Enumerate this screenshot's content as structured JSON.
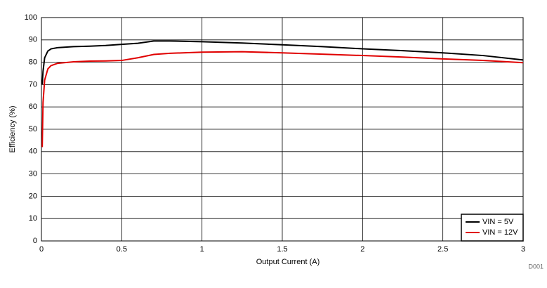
{
  "chart_data": {
    "type": "line",
    "xlabel": "Output Current (A)",
    "ylabel": "Efficiency (%)",
    "note": "D001",
    "x": [
      0.005,
      0.01,
      0.02,
      0.04,
      0.06,
      0.1,
      0.2,
      0.3,
      0.4,
      0.5,
      0.6,
      0.7,
      0.8,
      1.0,
      1.25,
      1.5,
      1.75,
      2.0,
      2.25,
      2.5,
      2.75,
      3.0
    ],
    "series": [
      {
        "name": "VIN = 5V",
        "color": "#000000",
        "values": [
          70,
          76,
          82,
          85,
          86,
          86.5,
          87,
          87.2,
          87.5,
          88,
          88.5,
          89.5,
          89.5,
          89.2,
          88.6,
          87.8,
          87,
          86,
          85.2,
          84.2,
          83,
          81
        ]
      },
      {
        "name": "VIN = 12V",
        "color": "#e00000",
        "values": [
          42,
          62,
          72,
          77,
          78.5,
          79.5,
          80.2,
          80.5,
          80.6,
          80.8,
          82,
          83.5,
          84,
          84.5,
          84.7,
          84.2,
          83.6,
          83,
          82.3,
          81.5,
          80.8,
          79.8
        ]
      }
    ],
    "xlim": [
      0,
      3
    ],
    "xticks": [
      0,
      0.5,
      1,
      1.5,
      2,
      2.5,
      3
    ],
    "ylim": [
      0,
      100
    ],
    "yticks": [
      0,
      10,
      20,
      30,
      40,
      50,
      60,
      70,
      80,
      90,
      100
    ],
    "grid": true,
    "legend": "lower right"
  }
}
